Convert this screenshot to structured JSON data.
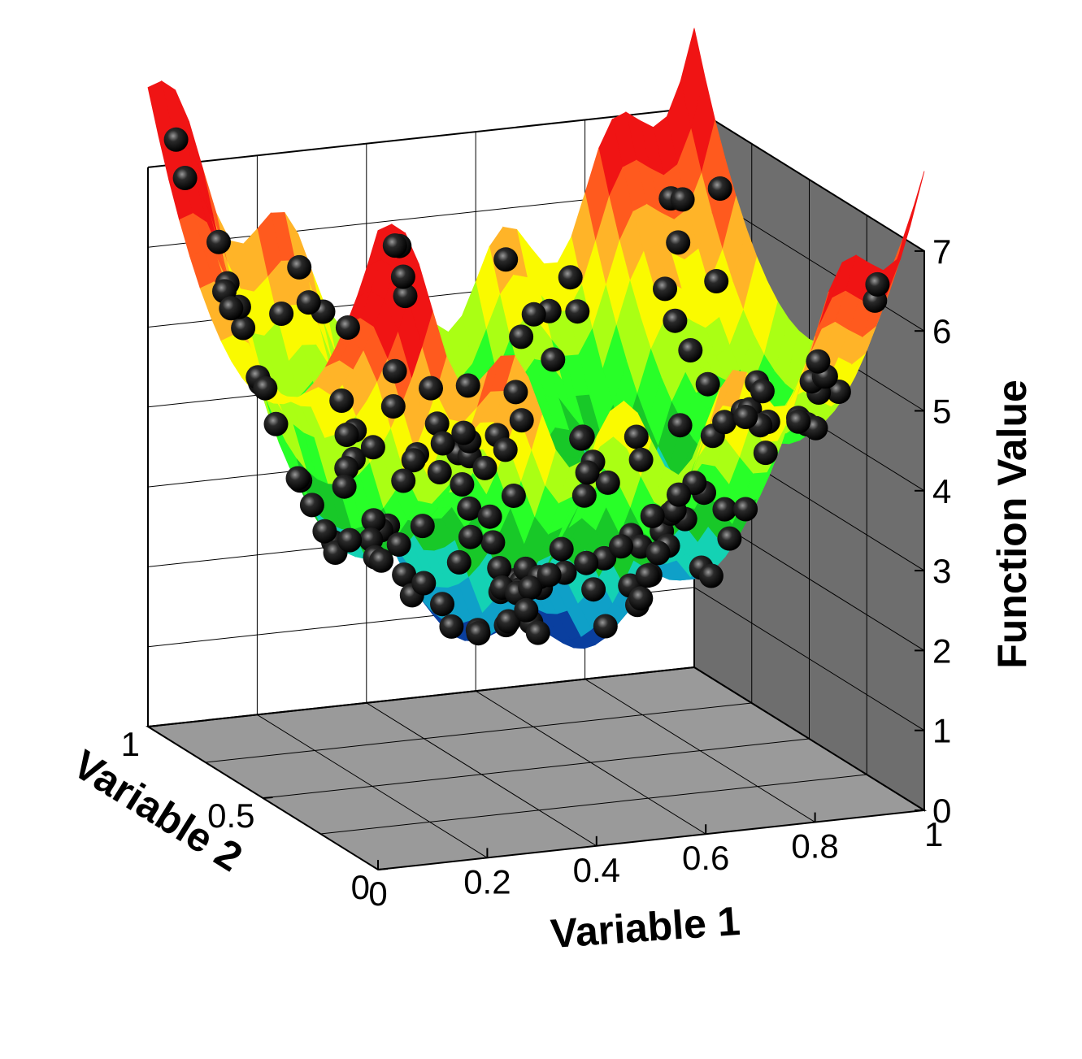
{
  "chart_data": {
    "type": "surface3d",
    "xlabel": "Variable 1",
    "ylabel": "Variable 2",
    "zlabel": "Function Value",
    "xlim": [
      0,
      1
    ],
    "ylim": [
      0,
      1
    ],
    "zlim": [
      0,
      7
    ],
    "x_ticks": [
      "0",
      "0.2",
      "0.4",
      "0.6",
      "0.8",
      "1"
    ],
    "y_ticks": [
      "0",
      "0.5",
      "1"
    ],
    "z_ticks": [
      "0",
      "1",
      "2",
      "3",
      "4",
      "5",
      "6",
      "7"
    ],
    "grid": true,
    "colormap": [
      "#00007a",
      "#0a3f9f",
      "#0fa0c8",
      "#14d2b4",
      "#18c828",
      "#28ff28",
      "#aaff14",
      "#fafa00",
      "#ffb428",
      "#ff5a1e",
      "#f01414"
    ],
    "marker_color": "#111111",
    "floor_color": "#9a9a9a",
    "back_wall_color": "#6e6e6e",
    "surface_function": "z = 2 + 3*(2*v1 - 1)^2 + 3*(2*v2 - 1)^2 + 0.5*sin(10*pi*v1)",
    "surface_shape": "bowl with a valley along the centre of Variable 2; ridged along Variable 1 by five sinusoidal peaks"
  }
}
